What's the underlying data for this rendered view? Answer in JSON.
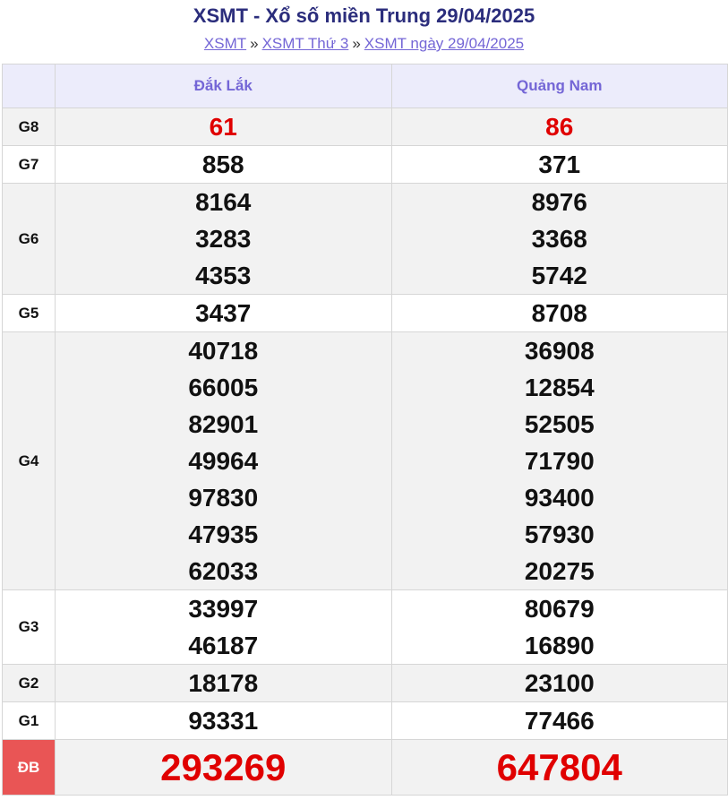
{
  "title": "XSMT - Xổ số miền Trung 29/04/2025",
  "breadcrumb": [
    {
      "label": "XSMT"
    },
    {
      "label": "XSMT Thứ 3"
    },
    {
      "label": "XSMT ngày 29/04/2025"
    }
  ],
  "breadcrumb_separator": "»",
  "colors": {
    "title": "#2b2d7c",
    "link": "#7466d6",
    "header_bg": "#ececfb",
    "highlight": "#e00000",
    "special_label_bg": "#e95555"
  },
  "table": {
    "provinces": [
      "Đắk Lắk",
      "Quảng Nam"
    ],
    "prizes": [
      {
        "label": "G8",
        "highlight": true,
        "results": [
          [
            "61"
          ],
          [
            "86"
          ]
        ]
      },
      {
        "label": "G7",
        "results": [
          [
            "858"
          ],
          [
            "371"
          ]
        ]
      },
      {
        "label": "G6",
        "results": [
          [
            "8164",
            "3283",
            "4353"
          ],
          [
            "8976",
            "3368",
            "5742"
          ]
        ]
      },
      {
        "label": "G5",
        "results": [
          [
            "3437"
          ],
          [
            "8708"
          ]
        ]
      },
      {
        "label": "G4",
        "results": [
          [
            "40718",
            "66005",
            "82901",
            "49964",
            "97830",
            "47935",
            "62033"
          ],
          [
            "36908",
            "12854",
            "52505",
            "71790",
            "93400",
            "57930",
            "20275"
          ]
        ]
      },
      {
        "label": "G3",
        "results": [
          [
            "33997",
            "46187"
          ],
          [
            "80679",
            "16890"
          ]
        ]
      },
      {
        "label": "G2",
        "results": [
          [
            "18178"
          ],
          [
            "23100"
          ]
        ]
      },
      {
        "label": "G1",
        "results": [
          [
            "93331"
          ],
          [
            "77466"
          ]
        ]
      },
      {
        "label": "ĐB",
        "highlight": true,
        "special": true,
        "results": [
          [
            "293269"
          ],
          [
            "647804"
          ]
        ]
      }
    ]
  }
}
